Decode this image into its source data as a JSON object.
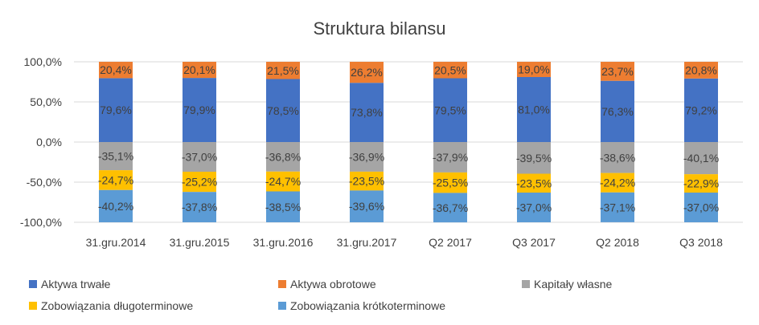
{
  "chart_data": {
    "type": "bar",
    "stacked": true,
    "title": "Struktura bilansu",
    "xlabel": "",
    "ylabel": "",
    "ylim": [
      -100,
      100
    ],
    "y_ticks": [
      {
        "value": 100,
        "label": "100,0%"
      },
      {
        "value": 50,
        "label": "50,0%"
      },
      {
        "value": 0,
        "label": "0,0%"
      },
      {
        "value": -50,
        "label": "-50,0%"
      },
      {
        "value": -100,
        "label": "-100,0%"
      }
    ],
    "grid": true,
    "legend_position": "bottom",
    "categories": [
      "31.gru.2014",
      "31.gru.2015",
      "31.gru.2016",
      "31.gru.2017",
      "Q2 2017",
      "Q3 2017",
      "Q2 2018",
      "Q3 2018"
    ],
    "series": [
      {
        "name": "Aktywa trwałe",
        "color": "#4472c4",
        "values": [
          79.6,
          79.9,
          78.5,
          73.8,
          79.5,
          81.0,
          76.3,
          79.2
        ],
        "labels": [
          "79,6%",
          "79,9%",
          "78,5%",
          "73,8%",
          "79,5%",
          "81,0%",
          "76,3%",
          "79,2%"
        ]
      },
      {
        "name": "Aktywa obrotowe",
        "color": "#ed7d31",
        "values": [
          20.4,
          20.1,
          21.5,
          26.2,
          20.5,
          19.0,
          23.7,
          20.8
        ],
        "labels": [
          "20,4%",
          "20,1%",
          "21,5%",
          "26,2%",
          "20,5%",
          "19,0%",
          "23,7%",
          "20,8%"
        ]
      },
      {
        "name": "Kapitały własne",
        "color": "#a5a5a5",
        "values": [
          -35.1,
          -37.0,
          -36.8,
          -36.9,
          -37.9,
          -39.5,
          -38.6,
          -40.1
        ],
        "labels": [
          "-35,1%",
          "-37,0%",
          "-36,8%",
          "-36,9%",
          "-37,9%",
          "-39,5%",
          "-38,6%",
          "-40,1%"
        ]
      },
      {
        "name": "Zobowiązania długoterminowe",
        "color": "#ffc000",
        "values": [
          -24.7,
          -25.2,
          -24.7,
          -23.5,
          -25.5,
          -23.5,
          -24.2,
          -22.9
        ],
        "labels": [
          "-24,7%",
          "-25,2%",
          "-24,7%",
          "-23,5%",
          "-25,5%",
          "-23,5%",
          "-24,2%",
          "-22,9%"
        ]
      },
      {
        "name": "Zobowiązania krótkoterminowe",
        "color": "#5b9bd5",
        "values": [
          -40.2,
          -37.8,
          -38.5,
          -39.6,
          -36.7,
          -37.0,
          -37.1,
          -37.0
        ],
        "labels": [
          "-40,2%",
          "-37,8%",
          "-38,5%",
          "-39,6%",
          "-36,7%",
          "-37,0%",
          "-37,1%",
          "-37,0%"
        ]
      }
    ]
  }
}
